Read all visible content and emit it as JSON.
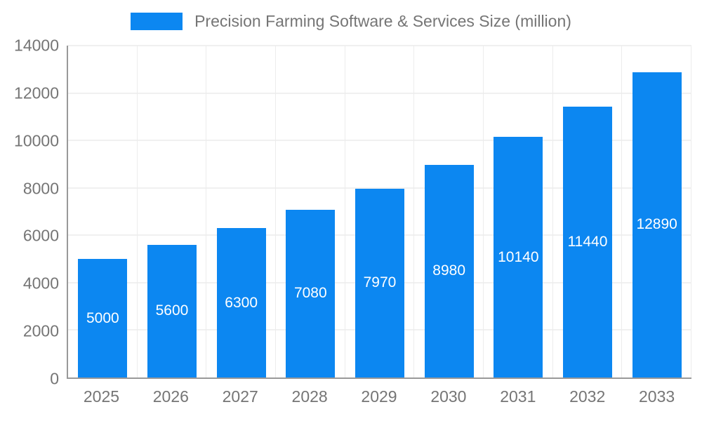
{
  "chart_data": {
    "type": "bar",
    "title": "Precision Farming Software & Services Size (million)",
    "categories": [
      "2025",
      "2026",
      "2027",
      "2028",
      "2029",
      "2030",
      "2031",
      "2032",
      "2033"
    ],
    "values": [
      5000,
      5600,
      6300,
      7080,
      7970,
      8980,
      10140,
      11440,
      12890
    ],
    "value_labels": [
      "5000",
      "5600",
      "6300",
      "7080",
      "7970",
      "8980",
      "10140",
      "11440",
      "12890"
    ],
    "xlabel": "",
    "ylabel": "",
    "ylim": [
      0,
      14000
    ],
    "yticks": [
      0,
      2000,
      4000,
      6000,
      8000,
      10000,
      12000,
      14000
    ],
    "grid": true,
    "legend_position": "top-center"
  },
  "style": {
    "bar_color": "#0c87f1",
    "label_color": "#ffffff",
    "axis_text_color": "#757575",
    "axis_line_color": "#999999",
    "gridline_color": "#e0e0e0",
    "gridline_v_color": "#ececec",
    "background_color": "#ffffff"
  }
}
